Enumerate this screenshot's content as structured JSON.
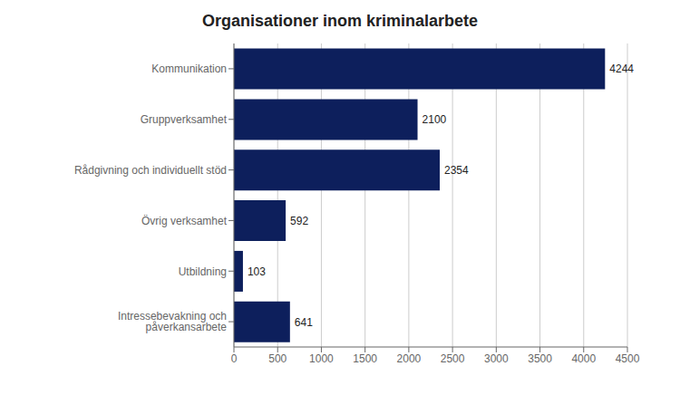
{
  "chart_data": {
    "type": "bar",
    "orientation": "horizontal",
    "title": "Organisationer inom kriminalarbete",
    "categories": [
      "Kommunikation",
      "Gruppverksamhet",
      "Rådgivning och individuellt stöd",
      "Övrig verksamhet",
      "Utbildning",
      "Intressebevakning och påverkansarbete"
    ],
    "values": [
      4244,
      2100,
      2354,
      592,
      103,
      641
    ],
    "color": "#0d1f5c",
    "xlim": [
      0,
      4500
    ],
    "xticks": [
      0,
      500,
      1000,
      1500,
      2000,
      2500,
      3000,
      3500,
      4000,
      4500
    ],
    "grid": true,
    "data_labels": true
  }
}
